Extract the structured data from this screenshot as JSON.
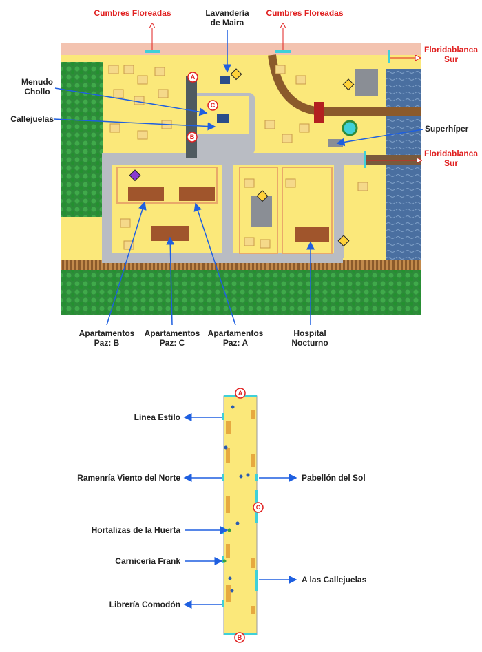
{
  "town_map": {
    "exits": {
      "top_left": "Cumbres Floreadas",
      "top_right": "Cumbres Floreadas",
      "east_upper": "Floridablanca\nSur",
      "east_lower": "Floridablanca\nSur"
    },
    "places": {
      "laundry": "Lavandería\nde Maira",
      "menudo_chollo": "Menudo\nChollo",
      "callejuelas": "Callejuelas",
      "superhiper": "Superhíper",
      "apt_b": "Apartamentos\nPaz: B",
      "apt_c": "Apartamentos\nPaz: C",
      "apt_a": "Apartamentos\nPaz: A",
      "hospital": "Hospital\nNocturno"
    },
    "markers": [
      "A",
      "B",
      "C"
    ]
  },
  "alley_map": {
    "markers": [
      "A",
      "B",
      "C"
    ],
    "left_shops": [
      "Línea Estilo",
      "Ramenría Viento del Norte",
      "Hortalizas de la Huerta",
      "Carnicería Frank",
      "Librería Comodón"
    ],
    "right_shops": [
      "Pabellón del Sol",
      "A las Callejuelas"
    ]
  },
  "colors": {
    "label_red": "#e02020",
    "arrow_blue": "#1e5fe0",
    "ground_yellow": "#fbe87a",
    "road_gray": "#b9bcc3",
    "forest_green": "#2e8b3a",
    "rail_brown": "#8b5a2b",
    "water_blue": "#4a6fa0",
    "path_pink": "#f3c3b0",
    "exit_cyan": "#3fd0d8"
  }
}
